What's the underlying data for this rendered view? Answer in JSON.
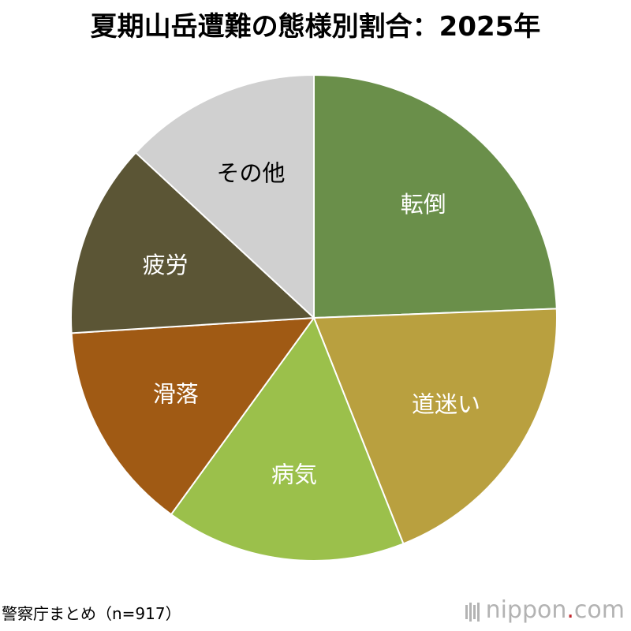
{
  "title": "夏期山岳遭難の態様別割合：2025年",
  "source": "警察庁まとめ（n=917）",
  "brand": {
    "name": "nippon",
    "dot": ".",
    "tld": "com",
    "dot_color": "#c1272d"
  },
  "chart_data": {
    "type": "pie",
    "title": "夏期山岳遭難の態様別割合：2025年",
    "start": "12 o'clock, clockwise",
    "slices": [
      {
        "label": "転倒",
        "value": 24.4,
        "color": "#6a8f4a",
        "text_color": "#ffffff"
      },
      {
        "label": "道迷い",
        "value": 19.6,
        "color": "#b9a03f",
        "text_color": "#ffffff"
      },
      {
        "label": "病気",
        "value": 16.0,
        "color": "#9bc04b",
        "text_color": "#ffffff"
      },
      {
        "label": "滑落",
        "value": 14.0,
        "color": "#a05a14",
        "text_color": "#ffffff"
      },
      {
        "label": "疲労",
        "value": 12.9,
        "color": "#5b5535",
        "text_color": "#ffffff"
      },
      {
        "label": "その他",
        "value": 13.1,
        "color": "#d0d0d0",
        "text_color": "#000000"
      }
    ]
  }
}
